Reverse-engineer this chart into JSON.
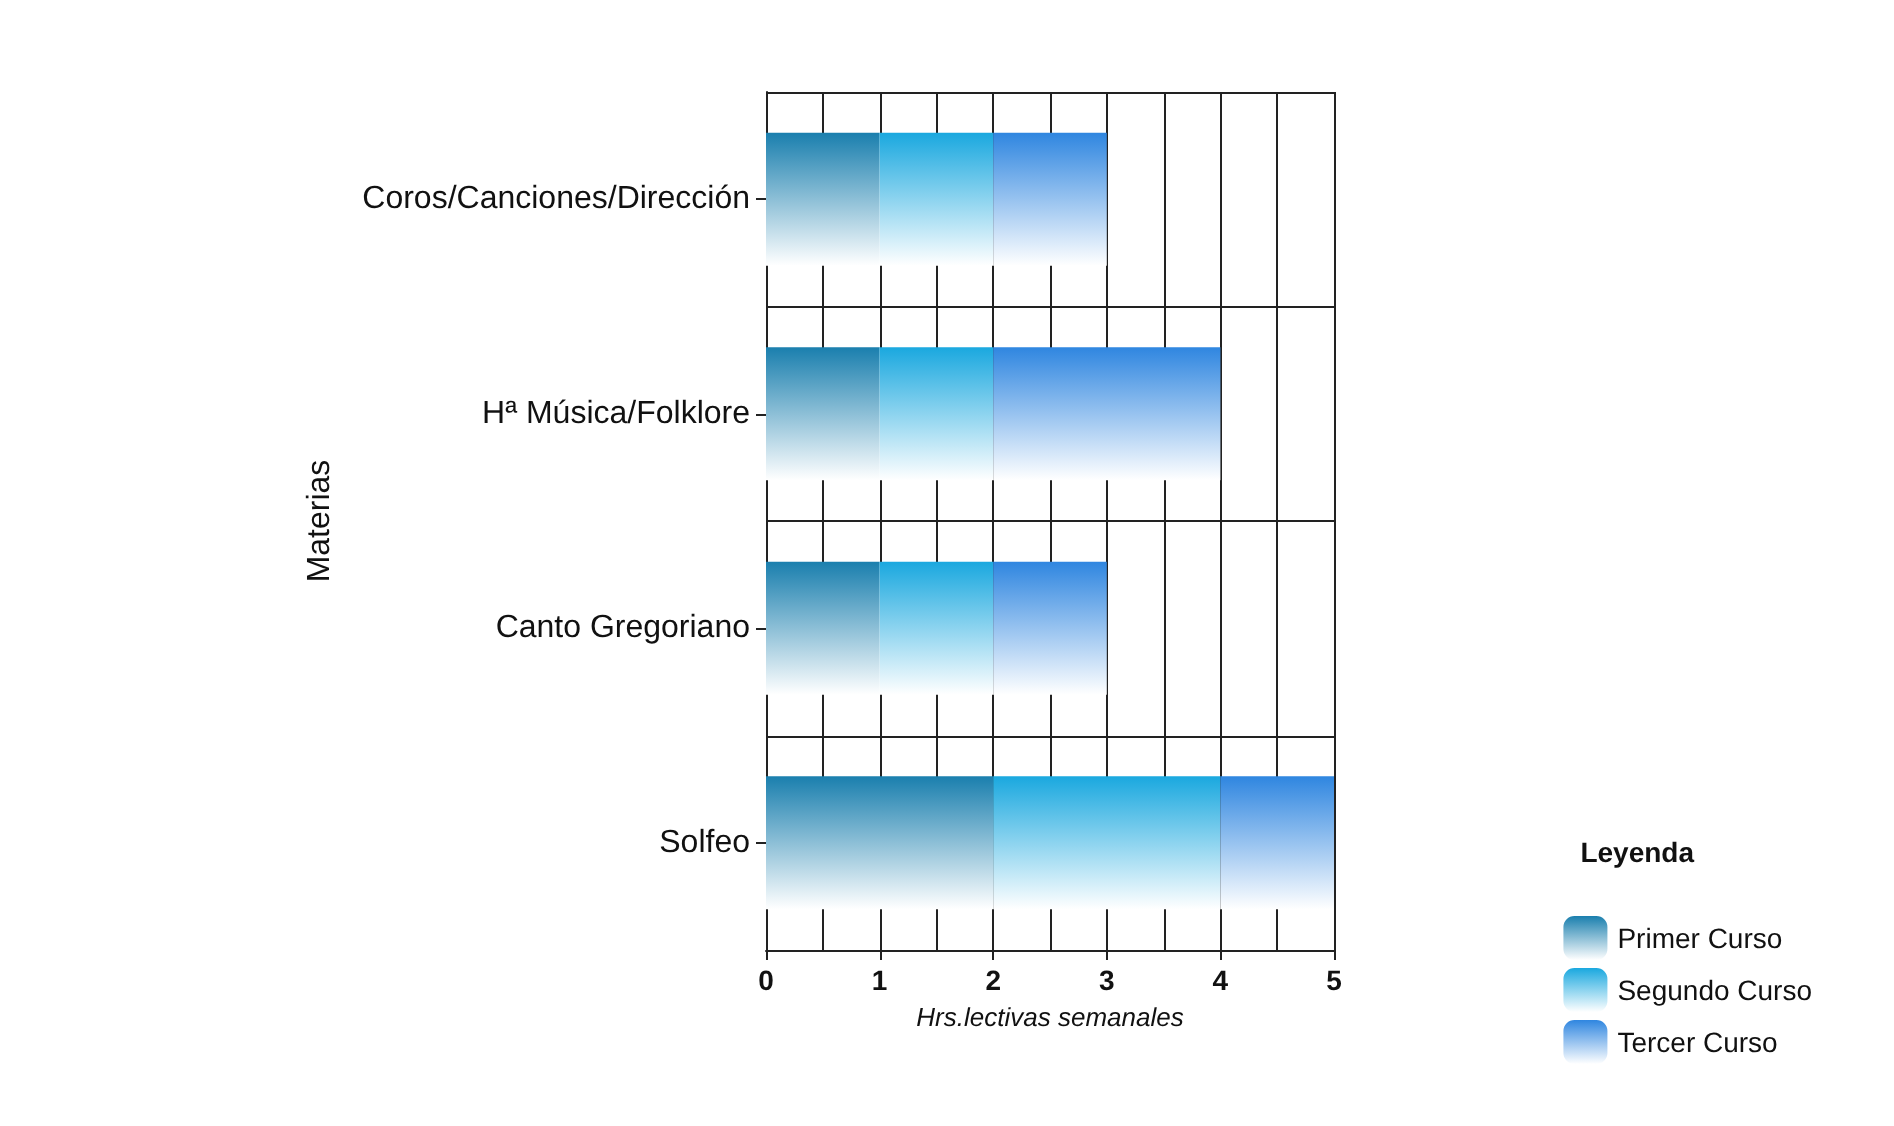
{
  "chart_data": {
    "type": "bar",
    "orientation": "horizontal",
    "stacked": true,
    "ylabel": "Materias",
    "xlabel": "Hrs.lectivas semanales",
    "legend_title": "Leyenda",
    "legend": "bottom right",
    "grid": true,
    "categories": [
      "Coros/Canciones/Dirección",
      "Hª Música/Folklore",
      "Canto Gregoriano",
      "Solfeo"
    ],
    "xlim": [
      0,
      5
    ],
    "xticks": [
      0,
      1,
      2,
      3,
      4,
      5
    ],
    "series": [
      {
        "name": "Primer Curso",
        "color": "#1a7fae",
        "values": [
          1,
          1,
          1,
          2
        ]
      },
      {
        "name": "Segundo Curso",
        "color": "#1aa8df",
        "values": [
          1,
          1,
          1,
          2
        ]
      },
      {
        "name": "Tercer Curso",
        "color": "#2f86e0",
        "values": [
          1,
          2,
          1,
          1
        ]
      }
    ]
  }
}
